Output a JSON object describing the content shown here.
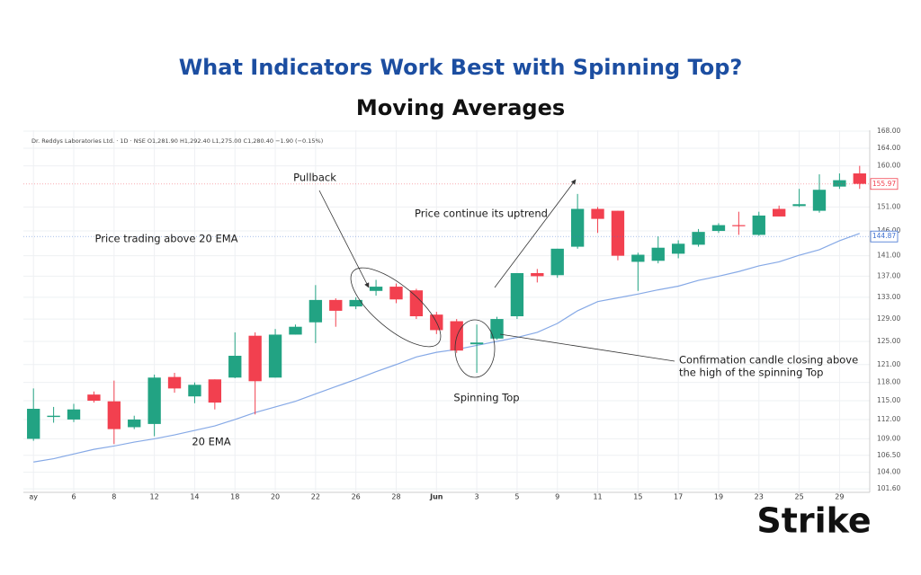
{
  "header": {
    "title": "What Indicators Work Best with Spinning Top?",
    "subtitle": "Moving Averages"
  },
  "logo": "Strike",
  "chart_data": {
    "type": "candlestick",
    "info": "Dr. Reddys Laboratories Ltd. · 1D · NSE  O1,281.90 H1,292.40 L1,275.00 C1,280.40 −1.90 (−0.15%)",
    "categories": [
      "ay",
      null,
      "6",
      null,
      "8",
      null,
      "12",
      null,
      "14",
      null,
      "18",
      null,
      "20",
      null,
      "22",
      null,
      "26",
      null,
      "28",
      null,
      "Jun",
      null,
      "3",
      null,
      "5",
      null,
      "9",
      null,
      "11",
      null,
      "15",
      null,
      "17",
      null,
      "19",
      null,
      "23",
      null,
      "25",
      null,
      "29",
      null
    ],
    "open": [
      109,
      112.4,
      112,
      116,
      114.9,
      110.8,
      111.3,
      118.9,
      115.7,
      118.5,
      118.8,
      126,
      118.8,
      126.2,
      128.4,
      132.5,
      131.3,
      134.2,
      135,
      134.3,
      129.8,
      128.6,
      124.5,
      125.5,
      129.5,
      137.6,
      137.2,
      142.8,
      150.6,
      150.2,
      139.8,
      140,
      141.4,
      143.2,
      146,
      147.2,
      145.2,
      150.6,
      151.2,
      150.2,
      155.4,
      158.3
    ],
    "high": [
      117,
      114,
      114.5,
      116.5,
      118.3,
      112.6,
      119.3,
      119.6,
      118,
      118.5,
      126.6,
      126.6,
      127.2,
      128,
      135.3,
      132.8,
      133,
      136.3,
      135.6,
      134.6,
      130.3,
      129,
      128,
      129.4,
      137.6,
      138.4,
      142.4,
      153.8,
      151,
      150.2,
      141.6,
      144.9,
      144.1,
      146.4,
      147.6,
      150,
      150,
      151.3,
      154.9,
      158.1,
      158.3,
      160
    ],
    "low": [
      108.7,
      111.5,
      111.6,
      114.7,
      108.2,
      110.5,
      109.4,
      116.3,
      114.6,
      113.6,
      118.7,
      112.8,
      118.8,
      126.2,
      124.7,
      127.6,
      130.8,
      133.3,
      131.9,
      129,
      126.3,
      123,
      119.6,
      125.3,
      129,
      135.8,
      136.7,
      142.4,
      145.6,
      140.1,
      134.2,
      139.5,
      140.5,
      142.8,
      145.6,
      145.2,
      145,
      149,
      151,
      149.8,
      154.9,
      154.9
    ],
    "close": [
      113.7,
      112.6,
      113.6,
      115,
      110.5,
      112,
      118.8,
      117,
      117.6,
      114.7,
      122.5,
      118.2,
      126.2,
      127.6,
      132.5,
      130.5,
      132.5,
      135,
      132.6,
      129.5,
      127,
      123.4,
      124.8,
      129,
      137.6,
      137,
      142.4,
      150.6,
      148.5,
      141,
      141.2,
      142.6,
      143.4,
      145.8,
      147.2,
      147,
      149.2,
      149,
      151.6,
      154.7,
      156.8,
      156
    ],
    "up_color": "#22a383",
    "down_color": "#f2404f",
    "ema": {
      "color": "#86a9e6",
      "values": [
        105.5,
        106,
        106.7,
        107.4,
        107.9,
        108.5,
        109,
        109.6,
        110.3,
        111,
        112,
        113.1,
        114,
        114.9,
        116.1,
        117.3,
        118.5,
        119.8,
        121,
        122.3,
        123.1,
        123.6,
        124.3,
        125,
        125.7,
        126.6,
        128.2,
        130.5,
        132.2,
        132.9,
        133.6,
        134.4,
        135.1,
        136.2,
        137,
        137.9,
        139,
        139.8,
        141.1,
        142.2,
        144,
        145.5
      ]
    },
    "last_price": 155.97,
    "ema_last": 144.87,
    "log_scale": true,
    "grid": true,
    "ylim": [
      101.1,
      168.2
    ],
    "yticks": [
      {
        "value": 101.6,
        "label": "101.60"
      },
      {
        "value": 104,
        "label": "104.00"
      },
      {
        "value": 106.5,
        "label": "106.50"
      },
      {
        "value": 109,
        "label": "109.00"
      },
      {
        "value": 112,
        "label": "112.00"
      },
      {
        "value": 115,
        "label": "115.00"
      },
      {
        "value": 118,
        "label": "118.00"
      },
      {
        "value": 121,
        "label": "121.00"
      },
      {
        "value": 125,
        "label": "125.00"
      },
      {
        "value": 129,
        "label": "129.00"
      },
      {
        "value": 133,
        "label": "133.00"
      },
      {
        "value": 137,
        "label": "137.00"
      },
      {
        "value": 141,
        "label": "141.00"
      },
      {
        "value": 146,
        "label": "146.00"
      },
      {
        "value": 151,
        "label": "151.00"
      },
      {
        "value": 160,
        "label": "160.00"
      },
      {
        "value": 164,
        "label": "164.00"
      },
      {
        "value": 168,
        "label": "168.00"
      }
    ],
    "annotations": {
      "pullback": "Pullback",
      "above_ema": "Price trading above 20 EMA",
      "uptrend": "Price continue its uptrend",
      "confirmation": [
        "Confirmation candle closing above",
        "the high of the spinning Top"
      ],
      "spinning_top": "Spinning Top",
      "ema_label": "20 EMA"
    }
  }
}
